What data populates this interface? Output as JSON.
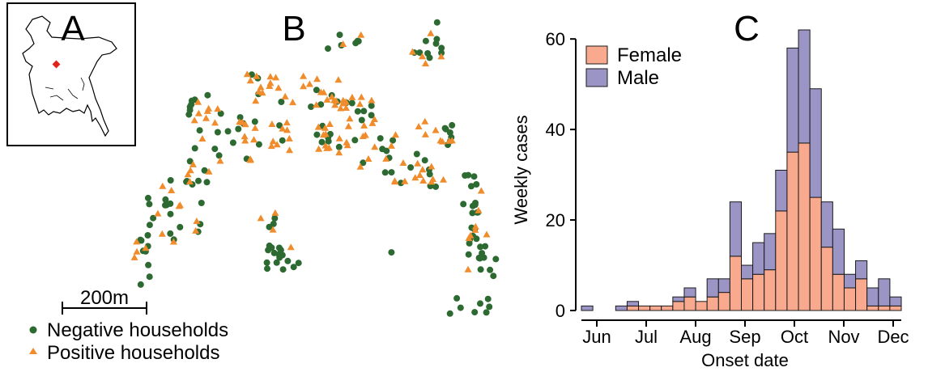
{
  "panels": {
    "a_label": "A",
    "b_label": "B",
    "c_label": "C"
  },
  "map_legend": {
    "scale_label": "200m",
    "negative_label": "Negative households",
    "positive_label": "Positive households"
  },
  "colors": {
    "negative": "#2d6a32",
    "positive": "#f08c2c",
    "female": "#f8a98e",
    "male": "#9b95c6",
    "inset_marker": "#e0231c"
  },
  "chart_data": {
    "type": "bar",
    "stacked": true,
    "title": "",
    "xlabel": "Onset date",
    "ylabel": "Weekly cases",
    "ylim": [
      0,
      62
    ],
    "yticks": [
      0,
      20,
      40,
      60
    ],
    "month_ticks": [
      "Jun",
      "Jul",
      "Aug",
      "Sep",
      "Oct",
      "Nov",
      "Dec"
    ],
    "legend_position": "top-left",
    "weeks": 28,
    "series": [
      {
        "name": "Female",
        "color": "#f8a98e",
        "values": [
          0,
          0,
          0,
          0,
          1,
          1,
          1,
          1,
          2,
          3,
          2,
          3,
          4,
          12,
          7,
          8,
          9,
          22,
          35,
          37,
          25,
          14,
          8,
          5,
          7,
          1,
          1,
          1
        ]
      },
      {
        "name": "Male",
        "color": "#9b95c6",
        "values": [
          1,
          0,
          0,
          1,
          1,
          0,
          0,
          0,
          1,
          2,
          0,
          4,
          3,
          12,
          3,
          7,
          8,
          9,
          23,
          25,
          24,
          10,
          10,
          3,
          4,
          4,
          6,
          2
        ]
      }
    ]
  }
}
